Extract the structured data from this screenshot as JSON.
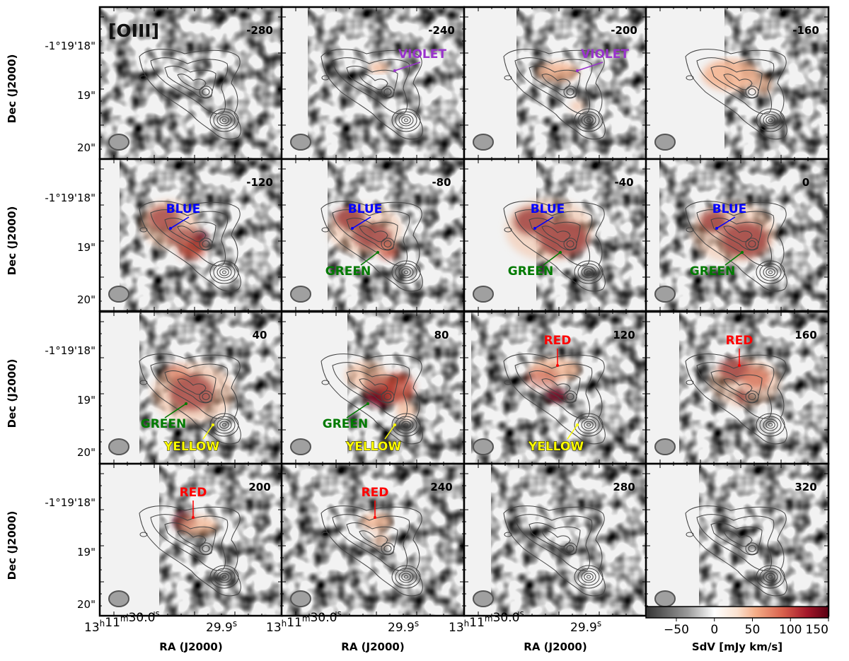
{
  "figure": {
    "title_tag": "[OIII]",
    "ylabel": "Dec (J2000)",
    "xlabel": "RA (J2000)",
    "ytick_labels": [
      "-1°19'18\"",
      "19\"",
      "20\""
    ],
    "xtick_labels": [
      "30.0",
      "29.9"
    ],
    "ra_prefix": "13",
    "ra_h": "h",
    "ra_mid": "11",
    "ra_m": "m",
    "ra_s": "s"
  },
  "chart_data": {
    "type": "heatmap",
    "description_units": "velocity channels in km/s",
    "channels": [
      -280,
      -240,
      -200,
      -160,
      -120,
      -80,
      -40,
      0,
      40,
      80,
      120,
      160,
      200,
      240,
      280,
      320
    ],
    "channel_labels": [
      "-280",
      "-240",
      "-200",
      "-160",
      "-120",
      "-80",
      "-40",
      "0",
      "40",
      "80",
      "120",
      "160",
      "200",
      "240",
      "280",
      "320"
    ],
    "rows": 4,
    "cols": 4,
    "annotations": {
      "violet": "VIOLET",
      "blue": "BLUE",
      "green": "GREEN",
      "yellow": "YELLOW",
      "red": "RED"
    },
    "colorbar": {
      "label": "SdV [mJy km/s]",
      "min": -90,
      "max": 150,
      "ticks": [
        -50,
        0,
        50,
        100,
        150
      ],
      "tick_labels": [
        "−50",
        "0",
        "50",
        "100",
        "150"
      ]
    }
  },
  "colors": {
    "violet": "#9933cc",
    "blue": "#0000ff",
    "green": "#007a00",
    "yellow": "#ffff00",
    "red": "#ff0000",
    "emission_dark": "#6b0016",
    "emission_mid": "#c24a3a",
    "emission_light": "#f4b592"
  }
}
